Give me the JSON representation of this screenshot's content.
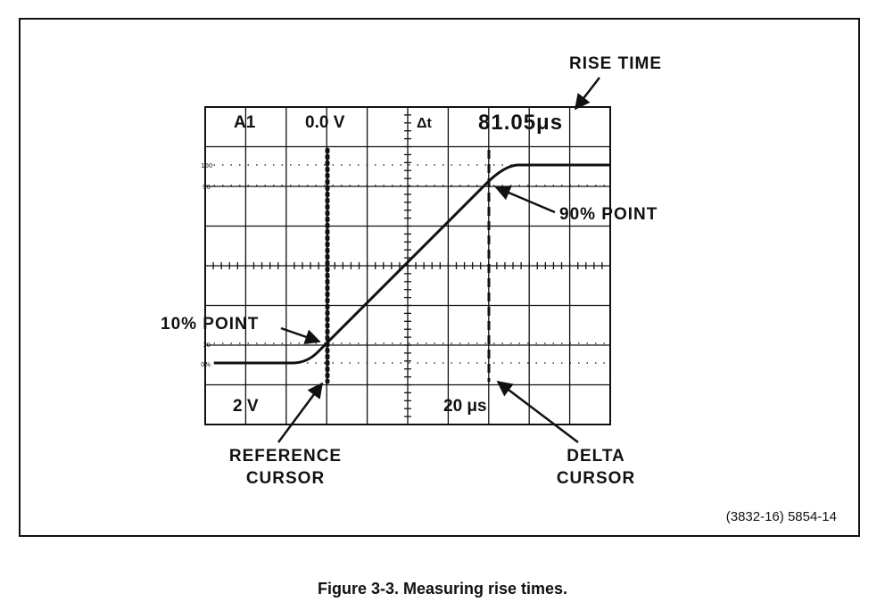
{
  "screen": {
    "channel": "A1",
    "reference_level": "0.0 V",
    "delta_symbol": "Δt",
    "delta_time": "81.05μs",
    "volts_per_div": "2 V",
    "time_per_div": "20 μs",
    "graticule_marks": {
      "top_100": "100",
      "top_90": "90",
      "bottom_10": "10",
      "bottom_0": "0%"
    }
  },
  "labels": {
    "rise_time": "RISE TIME",
    "point_90": "90% POINT",
    "point_10": "10% POINT",
    "reference_cursor_line1": "REFERENCE",
    "reference_cursor_line2": "CURSOR",
    "delta_cursor_line1": "DELTA",
    "delta_cursor_line2": "CURSOR"
  },
  "figure_id": "(3832-16)  5854-14",
  "caption": "Figure 3-3. Measuring rise times."
}
